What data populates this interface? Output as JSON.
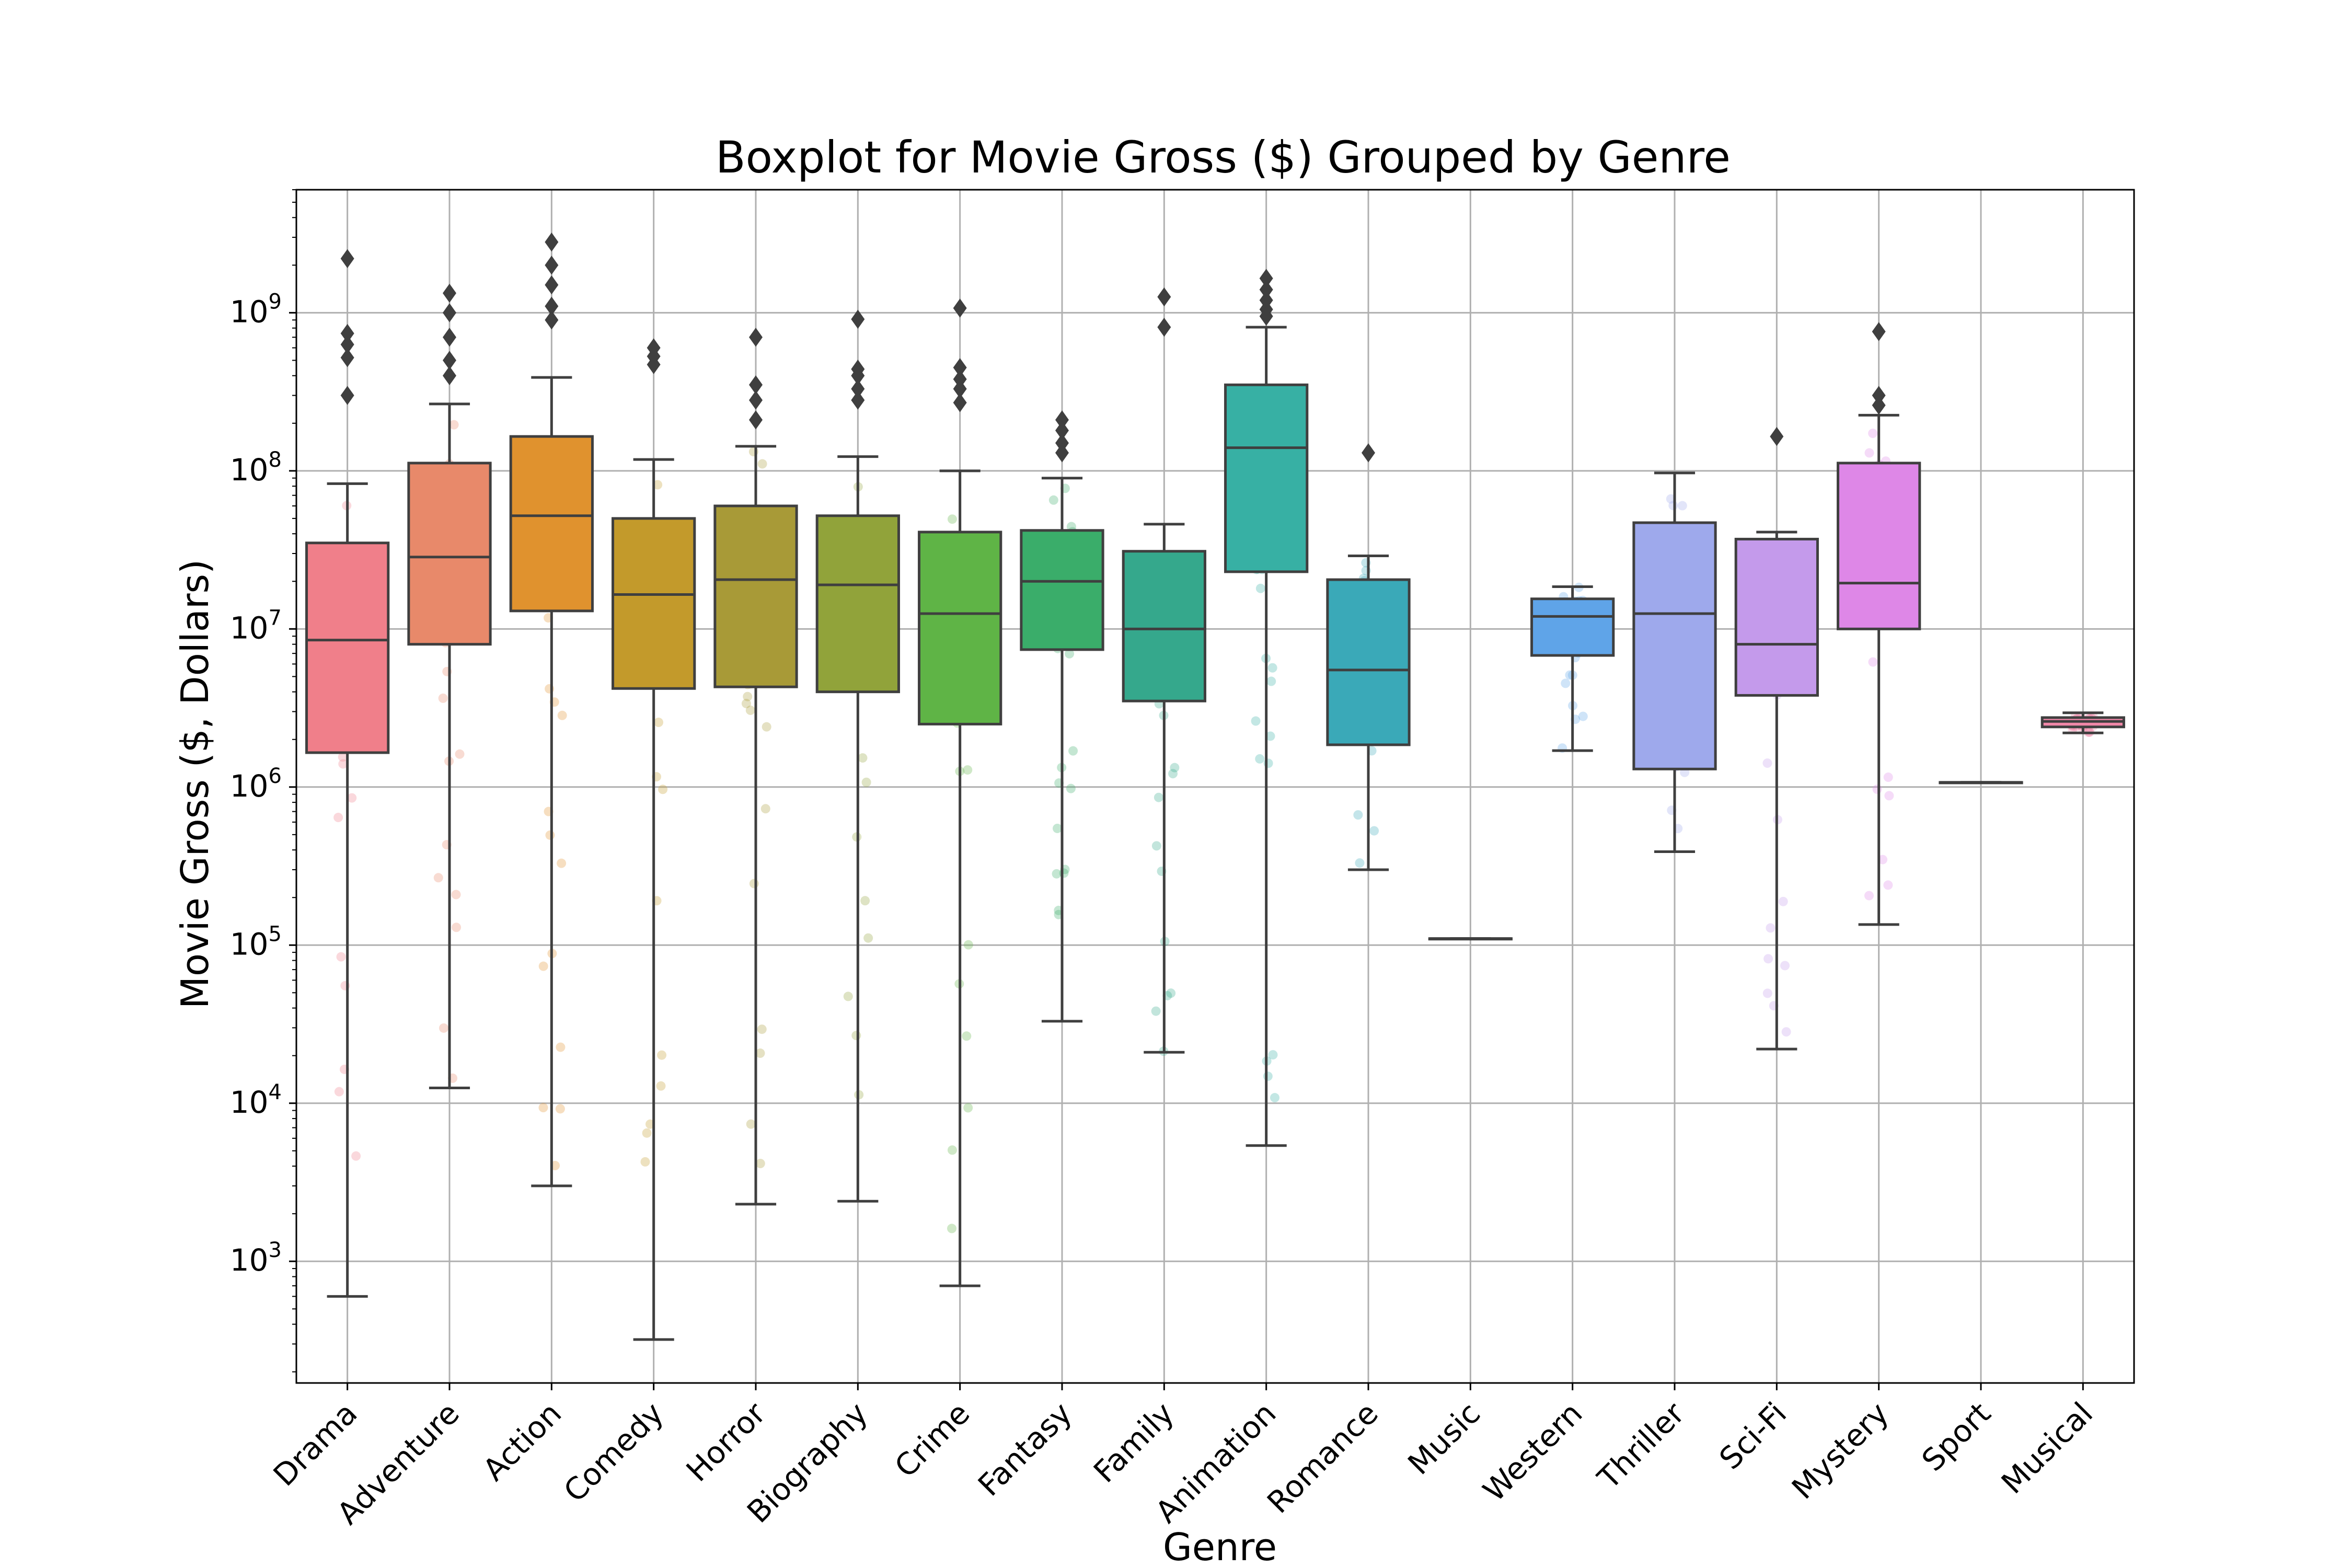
{
  "chart_data": {
    "type": "box",
    "title": "Boxplot for Movie Gross ($) Grouped by Genre",
    "xlabel": "Genre",
    "ylabel": "Movie Gross ($, Dollars)",
    "yscale": "log",
    "ylim": [
      170,
      6000000000
    ],
    "yticks": [
      {
        "value": 1000,
        "base": "10",
        "exp": "3"
      },
      {
        "value": 10000,
        "base": "10",
        "exp": "4"
      },
      {
        "value": 100000,
        "base": "10",
        "exp": "5"
      },
      {
        "value": 1000000,
        "base": "10",
        "exp": "6"
      },
      {
        "value": 10000000,
        "base": "10",
        "exp": "7"
      },
      {
        "value": 100000000,
        "base": "10",
        "exp": "8"
      },
      {
        "value": 1000000000,
        "base": "10",
        "exp": "9"
      }
    ],
    "grid": true,
    "legend": "none",
    "categories": [
      "Drama",
      "Adventure",
      "Action",
      "Comedy",
      "Horror",
      "Biography",
      "Crime",
      "Fantasy",
      "Family",
      "Animation",
      "Romance",
      "Music",
      "Western",
      "Thriller",
      "Sci-Fi",
      "Mystery",
      "Sport",
      "Musical"
    ],
    "colors": [
      "#f07f8a",
      "#e8896a",
      "#e0922e",
      "#c39a2b",
      "#a89a37",
      "#91a33a",
      "#5fb446",
      "#3aad6a",
      "#35a88c",
      "#37b0a4",
      "#3aa9b8",
      "#41a5d3",
      "#5fa4e8",
      "#9ea9ec",
      "#c49aeb",
      "#de87e7",
      "#f078cf",
      "#f087a8"
    ],
    "boxes": [
      {
        "genre": "Drama",
        "whisker_low": 600,
        "q1": 1650000,
        "median": 8500000,
        "q3": 35000000,
        "whisker_high": 83000000,
        "outliers": [
          2200000000,
          740000000,
          630000000,
          520000000,
          300000000
        ]
      },
      {
        "genre": "Adventure",
        "whisker_low": 12500,
        "q1": 8000000,
        "median": 28500000,
        "q3": 112000000,
        "whisker_high": 265000000,
        "outliers": [
          1330000000,
          1000000000,
          700000000,
          500000000,
          400000000
        ]
      },
      {
        "genre": "Action",
        "whisker_low": 3000,
        "q1": 13000000,
        "median": 52000000,
        "q3": 165000000,
        "whisker_high": 390000000,
        "outliers": [
          2800000000,
          2000000000,
          1500000000,
          1100000000,
          900000000
        ]
      },
      {
        "genre": "Comedy",
        "whisker_low": 320,
        "q1": 4200000,
        "median": 16500000,
        "q3": 50000000,
        "whisker_high": 118000000,
        "outliers": [
          600000000,
          530000000,
          470000000
        ]
      },
      {
        "genre": "Horror",
        "whisker_low": 2300,
        "q1": 4300000,
        "median": 20500000,
        "q3": 60000000,
        "whisker_high": 143000000,
        "outliers": [
          700000000,
          350000000,
          280000000,
          210000000
        ]
      },
      {
        "genre": "Biography",
        "whisker_low": 2400,
        "q1": 4000000,
        "median": 19000000,
        "q3": 52000000,
        "whisker_high": 123000000,
        "outliers": [
          910000000,
          440000000,
          400000000,
          330000000,
          280000000
        ]
      },
      {
        "genre": "Crime",
        "whisker_low": 700,
        "q1": 2500000,
        "median": 12500000,
        "q3": 41000000,
        "whisker_high": 100000000,
        "outliers": [
          1070000000,
          450000000,
          380000000,
          330000000,
          270000000
        ]
      },
      {
        "genre": "Fantasy",
        "whisker_low": 33000,
        "q1": 7400000,
        "median": 20000000,
        "q3": 42000000,
        "whisker_high": 90000000,
        "outliers": [
          210000000,
          180000000,
          150000000,
          130000000
        ]
      },
      {
        "genre": "Family",
        "whisker_low": 21000,
        "q1": 3500000,
        "median": 10000000,
        "q3": 31000000,
        "whisker_high": 46000000,
        "outliers": [
          1260000000,
          810000000
        ]
      },
      {
        "genre": "Animation",
        "whisker_low": 5400,
        "q1": 23000000,
        "median": 140000000,
        "q3": 350000000,
        "whisker_high": 810000000,
        "outliers": [
          1650000000,
          1400000000,
          1200000000,
          1050000000,
          950000000
        ]
      },
      {
        "genre": "Romance",
        "whisker_low": 300000,
        "q1": 1850000,
        "median": 5500000,
        "q3": 20500000,
        "whisker_high": 29000000,
        "outliers": [
          130000000
        ]
      },
      {
        "genre": "Music",
        "whisker_low": 110000,
        "q1": 110000,
        "median": 110000,
        "q3": 110000,
        "whisker_high": 110000,
        "outliers": []
      },
      {
        "genre": "Western",
        "whisker_low": 1700000,
        "q1": 6800000,
        "median": 12000000,
        "q3": 15500000,
        "whisker_high": 18500000,
        "outliers": []
      },
      {
        "genre": "Thriller",
        "whisker_low": 390000,
        "q1": 1300000,
        "median": 12500000,
        "q3": 47000000,
        "whisker_high": 97000000,
        "outliers": []
      },
      {
        "genre": "Sci-Fi",
        "whisker_low": 22000,
        "q1": 3800000,
        "median": 8000000,
        "q3": 37000000,
        "whisker_high": 41000000,
        "outliers": [
          165000000
        ]
      },
      {
        "genre": "Mystery",
        "whisker_low": 135000,
        "q1": 10000000,
        "median": 19500000,
        "q3": 112000000,
        "whisker_high": 225000000,
        "outliers": [
          760000000,
          300000000,
          260000000
        ]
      },
      {
        "genre": "Sport",
        "whisker_low": 1070000,
        "q1": 1070000,
        "median": 1070000,
        "q3": 1070000,
        "whisker_high": 1070000,
        "outliers": []
      },
      {
        "genre": "Musical",
        "whisker_low": 2200000,
        "q1": 2400000,
        "median": 2600000,
        "q3": 2750000,
        "whisker_high": 2950000,
        "outliers": []
      }
    ]
  }
}
